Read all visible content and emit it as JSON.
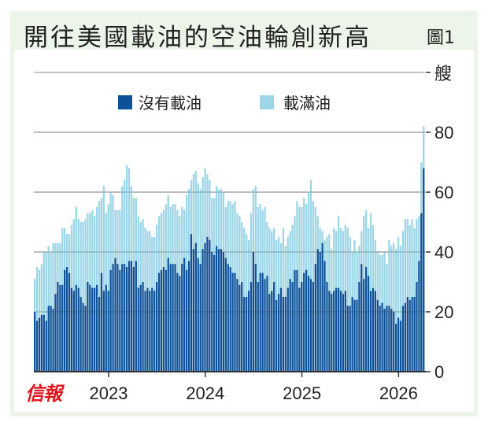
{
  "header": {
    "title": "開往美國載油的空油輪創新高",
    "figure_label": "圖1"
  },
  "logo": "信報",
  "colors": {
    "empty": "#0d5299",
    "laden": "#9dd6e6",
    "grid": "#8a8a8a",
    "axis": "#333333"
  },
  "chart_data": {
    "type": "bar",
    "stacked": true,
    "title": "開往美國載油的空油輪創新高",
    "unit_label": "艘",
    "ylim": [
      0,
      100
    ],
    "yticks": [
      0,
      20,
      40,
      60,
      80
    ],
    "grid": true,
    "legend_position": "top-center",
    "x_year_ticks": [
      {
        "label": "2023",
        "index": 32
      },
      {
        "label": "2024",
        "index": 74
      },
      {
        "label": "2025",
        "index": 116
      },
      {
        "label": "2026",
        "index": 158
      }
    ],
    "series": [
      {
        "name": "沒有載油",
        "values": [
          20,
          17,
          18,
          19,
          19,
          17,
          22,
          22,
          21,
          26,
          30,
          29,
          29,
          34,
          35,
          33,
          28,
          27,
          29,
          28,
          25,
          23,
          22,
          30,
          29,
          28,
          28,
          29,
          25,
          33,
          27,
          29,
          27,
          34,
          36,
          38,
          36,
          34,
          36,
          36,
          35,
          37,
          37,
          35,
          37,
          28,
          29,
          30,
          27,
          28,
          27,
          28,
          27,
          30,
          33,
          34,
          35,
          34,
          38,
          36,
          36,
          36,
          33,
          32,
          36,
          38,
          34,
          37,
          46,
          41,
          43,
          38,
          36,
          41,
          43,
          45,
          44,
          40,
          39,
          42,
          41,
          41,
          40,
          38,
          36,
          35,
          33,
          33,
          31,
          29,
          30,
          25,
          25,
          27,
          30,
          40,
          36,
          30,
          33,
          33,
          31,
          32,
          26,
          27,
          30,
          24,
          26,
          28,
          25,
          25,
          28,
          31,
          30,
          34,
          34,
          28,
          30,
          33,
          34,
          32,
          31,
          30,
          36,
          41,
          40,
          43,
          37,
          30,
          27,
          26,
          27,
          28,
          28,
          27,
          26,
          27,
          22,
          22,
          25,
          24,
          24,
          30,
          36,
          31,
          35,
          32,
          27,
          28,
          27,
          24,
          22,
          23,
          21,
          22,
          22,
          21,
          20,
          16,
          18,
          17,
          22,
          23,
          25,
          24,
          25,
          25,
          30,
          37,
          53,
          68
        ]
      },
      {
        "name": "載滿油",
        "total_values": [
          31,
          35,
          34,
          36,
          40,
          40,
          42,
          40,
          43,
          43,
          43,
          43,
          48,
          48,
          46,
          46,
          49,
          51,
          55,
          51,
          50,
          50,
          51,
          53,
          53,
          54,
          52,
          55,
          57,
          58,
          62,
          53,
          56,
          60,
          59,
          54,
          54,
          54,
          62,
          64,
          69,
          68,
          62,
          58,
          58,
          52,
          50,
          51,
          48,
          47,
          47,
          45,
          45,
          49,
          52,
          53,
          54,
          56,
          59,
          55,
          56,
          56,
          54,
          52,
          55,
          54,
          59,
          61,
          64,
          66,
          67,
          63,
          61,
          65,
          68,
          66,
          64,
          58,
          58,
          62,
          61,
          61,
          60,
          55,
          57,
          57,
          56,
          57,
          53,
          52,
          50,
          48,
          46,
          44,
          53,
          61,
          62,
          55,
          56,
          54,
          55,
          50,
          48,
          47,
          48,
          44,
          45,
          43,
          48,
          42,
          45,
          47,
          49,
          52,
          57,
          55,
          55,
          58,
          56,
          60,
          64,
          57,
          55,
          52,
          48,
          47,
          44,
          45,
          46,
          41,
          48,
          47,
          52,
          48,
          47,
          49,
          48,
          45,
          40,
          44,
          40,
          42,
          47,
          52,
          54,
          48,
          53,
          49,
          44,
          40,
          39,
          39,
          40,
          36,
          44,
          42,
          43,
          41,
          45,
          42,
          47,
          51,
          51,
          49,
          51,
          48,
          51,
          52,
          70,
          82
        ]
      }
    ]
  }
}
